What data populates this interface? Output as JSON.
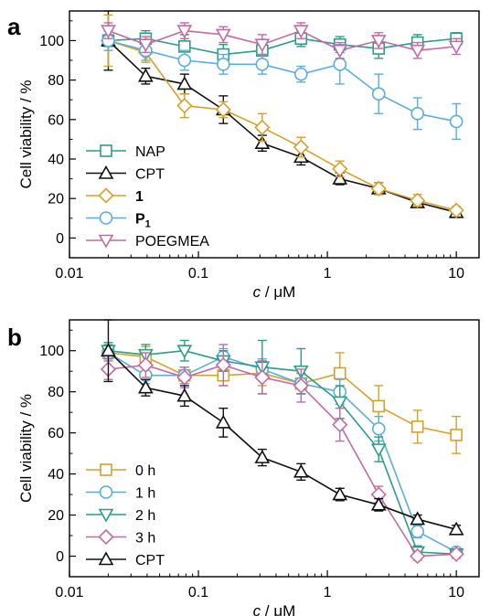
{
  "chart_data": [
    {
      "panel_label": "a",
      "type": "line",
      "xlabel": "c / μM",
      "ylabel": "Cell viability / %",
      "xscale": "log",
      "xlim": [
        0.01,
        15
      ],
      "ylim": [
        -10,
        115
      ],
      "xticks": [
        0.01,
        0.1,
        1,
        10
      ],
      "xtick_labels": [
        "0.01",
        "0.1",
        "1",
        "10"
      ],
      "yticks": [
        0,
        20,
        40,
        60,
        80,
        100
      ],
      "ytick_labels": [
        "0",
        "20",
        "40",
        "60",
        "80",
        "100"
      ],
      "grid": false,
      "legend_position": "bottom-left",
      "x": [
        0.02,
        0.039,
        0.078,
        0.156,
        0.3125,
        0.625,
        1.25,
        2.5,
        5,
        10
      ],
      "series": [
        {
          "name": "NAP",
          "marker": "square",
          "color": "#2e9c86",
          "values": [
            100,
            101,
            97,
            93,
            95,
            101,
            98,
            96,
            99,
            101
          ],
          "errors": [
            3,
            4,
            6,
            5,
            5,
            4,
            4,
            5,
            4,
            3
          ]
        },
        {
          "name": "CPT",
          "marker": "triangle-up",
          "color": "#111111",
          "values": [
            100,
            82,
            78,
            65,
            48,
            41,
            30,
            25,
            18,
            13
          ],
          "errors": [
            15,
            4,
            5,
            7,
            4,
            4,
            3,
            3,
            2,
            2
          ]
        },
        {
          "name": "1",
          "marker": "diamond",
          "color": "#d4a22c",
          "bold": true,
          "values": [
            100,
            94,
            67,
            65,
            56,
            46,
            35,
            25,
            19,
            14
          ],
          "errors": [
            13,
            5,
            6,
            4,
            7,
            5,
            4,
            3,
            3,
            2
          ]
        },
        {
          "name": "P1",
          "name_main": "P",
          "name_sub": "1",
          "bold": true,
          "marker": "circle",
          "color": "#5aaedc",
          "values": [
            100,
            95,
            90,
            88,
            88,
            83,
            88,
            73,
            63,
            59
          ],
          "errors": [
            5,
            5,
            5,
            5,
            5,
            4,
            10,
            10,
            8,
            9
          ]
        },
        {
          "name": "POEGMEA",
          "marker": "triangle-down",
          "color": "#c46aa6",
          "values": [
            105,
            98,
            105,
            103,
            98,
            105,
            95,
            100,
            95,
            97
          ],
          "errors": [
            4,
            4,
            4,
            4,
            5,
            4,
            4,
            4,
            4,
            4
          ]
        }
      ]
    },
    {
      "panel_label": "b",
      "type": "line",
      "xlabel": "c / μM",
      "ylabel": "Cell viability / %",
      "xscale": "log",
      "xlim": [
        0.01,
        15
      ],
      "ylim": [
        -10,
        115
      ],
      "xticks": [
        0.01,
        0.1,
        1,
        10
      ],
      "xtick_labels": [
        "0.01",
        "0.1",
        "1",
        "10"
      ],
      "yticks": [
        0,
        20,
        40,
        60,
        80,
        100
      ],
      "ytick_labels": [
        "0",
        "20",
        "40",
        "60",
        "80",
        "100"
      ],
      "grid": false,
      "legend_position": "bottom-left",
      "x": [
        0.02,
        0.039,
        0.078,
        0.156,
        0.3125,
        0.625,
        1.25,
        2.5,
        5,
        10
      ],
      "series": [
        {
          "name": "0 h",
          "marker": "square",
          "color": "#d4a22c",
          "values": [
            99,
            97,
            88,
            88,
            89,
            84,
            89,
            73,
            63,
            59
          ],
          "errors": [
            4,
            5,
            4,
            5,
            6,
            5,
            10,
            10,
            8,
            9
          ]
        },
        {
          "name": "1 h",
          "marker": "circle",
          "color": "#5aaedc",
          "values": [
            99,
            88,
            88,
            97,
            91,
            84,
            80,
            62,
            12,
            2
          ],
          "errors": [
            4,
            4,
            4,
            4,
            5,
            5,
            6,
            6,
            3,
            2
          ]
        },
        {
          "name": "2 h",
          "marker": "triangle-down",
          "color": "#2e9c86",
          "values": [
            100,
            98,
            100,
            95,
            92,
            90,
            75,
            52,
            2,
            1
          ],
          "errors": [
            4,
            5,
            5,
            5,
            13,
            11,
            8,
            6,
            3,
            2
          ]
        },
        {
          "name": "3 h",
          "marker": "diamond",
          "color": "#c46aa6",
          "values": [
            91,
            93,
            87,
            93,
            87,
            83,
            64,
            30,
            0,
            1
          ],
          "errors": [
            5,
            6,
            5,
            10,
            8,
            8,
            8,
            4,
            2,
            2
          ]
        },
        {
          "name": "CPT",
          "marker": "triangle-up",
          "color": "#111111",
          "values": [
            100,
            82,
            78,
            65,
            48,
            41,
            30,
            25,
            18,
            13
          ],
          "errors": [
            15,
            4,
            5,
            7,
            4,
            4,
            3,
            3,
            2,
            2
          ]
        }
      ]
    }
  ]
}
